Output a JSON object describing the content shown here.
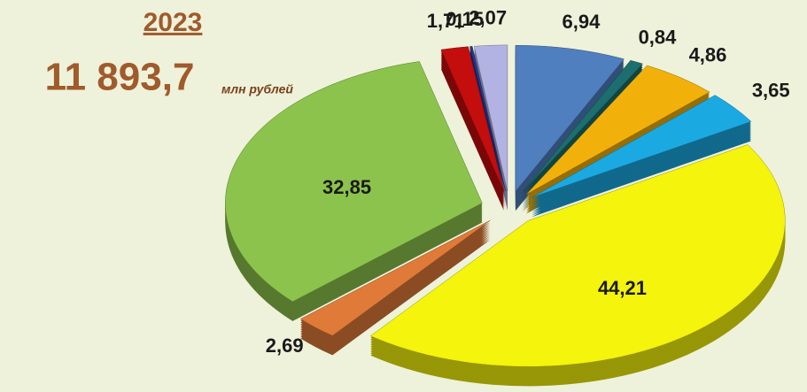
{
  "chart_data": {
    "type": "pie",
    "title": "2023",
    "subtitle": "11 893,7",
    "unit": "млн рублей",
    "values": [
      6.94,
      0.84,
      4.86,
      3.65,
      44.21,
      2.69,
      32.85,
      1.71,
      0.15,
      2.07
    ],
    "value_labels": [
      "6,94",
      "0,84",
      "4,86",
      "3,65",
      "44,21",
      "2,69",
      "32,85",
      "1,71",
      "0,15",
      "2,07"
    ],
    "colors": [
      "#4f7fbf",
      "#1d6e6e",
      "#f2b10a",
      "#1ba9e2",
      "#f4f40c",
      "#e07a38",
      "#8cc34c",
      "#c40d0d",
      "#22398f",
      "#b3b3e3"
    ]
  }
}
